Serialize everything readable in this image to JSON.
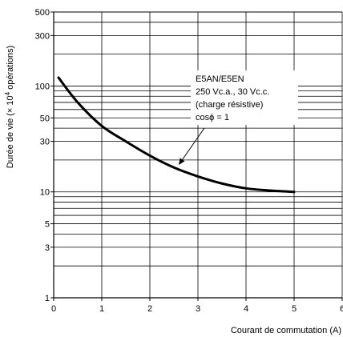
{
  "chart_data": {
    "type": "line",
    "title": "",
    "xlabel": "Courant de commutation (A)",
    "ylabel": "Durée de vie (× 10⁴ opérations)",
    "ylabel_parts": {
      "before": "Durée de vie (",
      "times": "×",
      "ten": " 10",
      "exp": "4",
      "after": " opérations)"
    },
    "x_scale": "linear",
    "y_scale": "log",
    "xlim": [
      0,
      6
    ],
    "ylim": [
      1,
      500
    ],
    "x_ticks": [
      0,
      1,
      2,
      3,
      4,
      5,
      6
    ],
    "x_tick_labels": [
      "0",
      "1",
      "2",
      "3",
      "4",
      "5",
      "6"
    ],
    "y_ticks": [
      1,
      3,
      5,
      10,
      30,
      50,
      100,
      300,
      500
    ],
    "y_tick_labels": [
      "1",
      "3",
      "5",
      "10",
      "30",
      "50",
      "100",
      "300",
      "500"
    ],
    "grid": true,
    "series": [
      {
        "name": "",
        "color": "#000000",
        "x": [
          0.1,
          0.5,
          1.0,
          1.5,
          2.0,
          2.5,
          3.0,
          3.5,
          4.0,
          4.5,
          5.0
        ],
        "y": [
          120,
          70,
          42,
          30,
          22,
          17,
          14,
          12,
          10.8,
          10.3,
          10.0
        ]
      }
    ],
    "annotation": {
      "lines": [
        "E5AN/E5EN",
        "250 Vc.a., 30 Vc.c.",
        "(charge résistive)",
        "cosϕ = 1"
      ],
      "arrow_to": {
        "x": 2.6,
        "y": 18
      }
    }
  }
}
